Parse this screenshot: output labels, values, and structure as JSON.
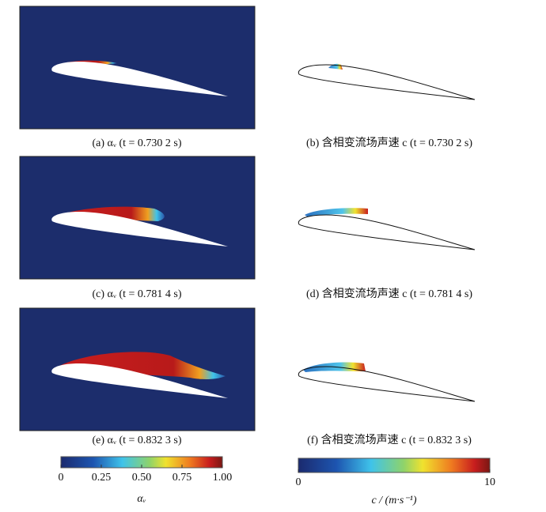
{
  "panels": [
    {
      "caption": "(a) αᵥ (t = 0.730 2 s)"
    },
    {
      "caption": "(b) 含相变流场声速 c (t = 0.730 2 s)"
    },
    {
      "caption": "(c) αᵥ (t = 0.781 4 s)"
    },
    {
      "caption": "(d) 含相变流场声速 c (t = 0.781 4 s)"
    },
    {
      "caption": "(e) αᵥ (t = 0.832 3 s)"
    },
    {
      "caption": "(f) 含相变流场声速 c (t = 0.832 3 s)"
    }
  ],
  "colorbars": [
    {
      "label": "αᵥ",
      "lim": [
        0,
        1
      ],
      "ticks": [
        0,
        0.25,
        {
          "value": 0.5,
          "label": "0.50"
        },
        {
          "value": 0.75,
          "label": "0.75"
        },
        {
          "value": 1,
          "label": "1.00"
        }
      ]
    },
    {
      "label": "c / (m·s⁻¹)",
      "lim": [
        0,
        10
      ],
      "ticks": [
        0,
        10
      ]
    }
  ]
}
